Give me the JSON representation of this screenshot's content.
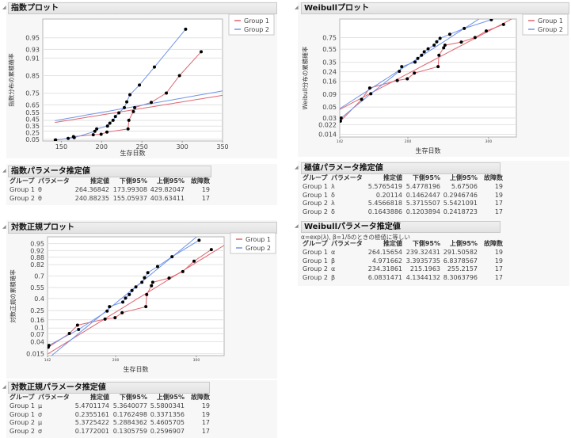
{
  "colors": {
    "group1": "#e06670",
    "group2": "#6f95e8",
    "grid": "#e2e2e2",
    "point": "#000000"
  },
  "exp_plot": {
    "title": "指数プロット",
    "ylabel": "指数分布の累積確率",
    "xlabel": "生存日数"
  },
  "weibull_plot": {
    "title": "Weibullプロット",
    "ylabel": "Weibull分布の累積確率",
    "xlabel": "生存日数"
  },
  "lognormal_plot": {
    "title": "対数正規プロット",
    "ylabel": "対数正規の累積確率",
    "xlabel": "生存日数"
  },
  "legend": [
    "Group 1",
    "Group 2"
  ],
  "exp_table": {
    "title": "指数パラメータ推定値",
    "headers": [
      "グループ",
      "パラメータ",
      "推定値",
      "下側95%",
      "上側95%",
      "故障数"
    ],
    "rows": [
      [
        "Group 1",
        "θ",
        "264.36842",
        "173.99308",
        "429.82047",
        "19"
      ],
      [
        "Group 2",
        "θ",
        "240.88235",
        "155.05937",
        "403.63411",
        "17"
      ]
    ]
  },
  "extreme_table": {
    "title": "極値パラメータ推定値",
    "headers": [
      "グループ",
      "パラメータ",
      "推定値",
      "下側95%",
      "上側95%",
      "故障数"
    ],
    "rows": [
      [
        "Group 1",
        "λ",
        "5.5765419",
        "5.4778196",
        "5.67506",
        "19"
      ],
      [
        "Group 1",
        "δ",
        "0.20114",
        "0.1462447",
        "0.2946746",
        "19"
      ],
      [
        "Group 2",
        "λ",
        "5.4566818",
        "5.3715507",
        "5.5421091",
        "17"
      ],
      [
        "Group 2",
        "δ",
        "0.1643886",
        "0.1203894",
        "0.2418723",
        "17"
      ]
    ]
  },
  "weibull_table": {
    "title": "Weibullパラメータ推定値",
    "note": "α=exp(λ), β=1/δのときの極値に等しい",
    "headers": [
      "グループ",
      "パラメータ",
      "推定値",
      "下側95%",
      "上側95%",
      "故障数"
    ],
    "rows": [
      [
        "Group 1",
        "α",
        "264.15654",
        "239.32431",
        "291.50582",
        "19"
      ],
      [
        "Group 1",
        "β",
        "4.971662",
        "3.3935735",
        "6.8378567",
        "19"
      ],
      [
        "Group 2",
        "α",
        "234.31861",
        "215.1963",
        "255.2157",
        "17"
      ],
      [
        "Group 2",
        "β",
        "6.0831471",
        "4.1344132",
        "8.3063796",
        "17"
      ]
    ]
  },
  "lognormal_table": {
    "title": "対数正規パラメータ推定値",
    "headers": [
      "グループ",
      "パラメータ",
      "推定値",
      "下側95%",
      "上側95%",
      "故障数"
    ],
    "rows": [
      [
        "Group 1",
        "μ",
        "5.4701174",
        "5.3640077",
        "5.5800341",
        "19"
      ],
      [
        "Group 1",
        "σ",
        "0.2355161",
        "0.1762498",
        "0.3371356",
        "19"
      ],
      [
        "Group 2",
        "μ",
        "5.3725422",
        "5.2884362",
        "5.4605705",
        "17"
      ],
      [
        "Group 2",
        "σ",
        "0.1772001",
        "0.1305759",
        "0.2596907",
        "17"
      ]
    ]
  },
  "chart_data": [
    {
      "type": "line",
      "scale": "exponential",
      "title": "指数プロット",
      "xlabel": "生存日数",
      "ylabel": "指数分布の累積確率",
      "xlim": [
        127,
        350
      ],
      "ylim": [
        0,
        0.971
      ],
      "xticks": [
        150,
        200,
        250,
        300,
        350
      ],
      "yticks": [
        0.05,
        0.25,
        0.35,
        0.45,
        0.55,
        0.65,
        0.75,
        0.85,
        0.91,
        0.93,
        0.95
      ],
      "grid": true,
      "legend": "top-right",
      "series": [
        {
          "name": "Group 1",
          "fit": {
            "theta": 264.36842
          }
        },
        {
          "name": "Group 2",
          "fit": {
            "theta": 240.88235
          }
        }
      ]
    },
    {
      "type": "line",
      "scale": "weibull",
      "title": "Weibullプロット",
      "xlabel": "生存日数",
      "ylabel": "Weibull分布の累積確率",
      "xlim": [
        142,
        345
      ],
      "ylim": [
        0.0123,
        0.965
      ],
      "xlog": true,
      "xticks": [
        142,
        200,
        300
      ],
      "yticks": [
        0.014,
        0.022,
        0.03,
        0.05,
        0.09,
        0.16,
        0.24,
        0.35,
        0.55,
        0.75
      ],
      "grid": true,
      "legend": "top-right",
      "series": [
        {
          "name": "Group 1",
          "fit": {
            "alpha": 264.15654,
            "beta": 4.971662
          }
        },
        {
          "name": "Group 2",
          "fit": {
            "alpha": 234.31861,
            "beta": 6.0831471
          }
        }
      ]
    },
    {
      "type": "line",
      "scale": "lognormal",
      "title": "対数正規プロット",
      "xlabel": "生存日数",
      "ylabel": "対数正規の累積確率",
      "xlim": [
        142,
        345
      ],
      "ylim": [
        0.0127,
        0.97
      ],
      "xlog": true,
      "xticks": [
        142,
        200,
        300
      ],
      "yticks": [
        0.015,
        0.04,
        0.07,
        0.1,
        0.16,
        0.25,
        0.4,
        0.55,
        0.7,
        0.82,
        0.88,
        0.92,
        0.95
      ],
      "grid": true,
      "legend": "top-right",
      "series": [
        {
          "name": "Group 1",
          "fit": {
            "mu": 5.4701174,
            "sigma": 0.2355161
          }
        },
        {
          "name": "Group 2",
          "fit": {
            "mu": 5.3725422,
            "sigma": 0.1772001
          }
        }
      ]
    }
  ],
  "observations": {
    "Group 1": [
      [
        142.5,
        0.026
      ],
      [
        158.5,
        0.071
      ],
      [
        165.1,
        0.119
      ],
      [
        189.6,
        0.166
      ],
      [
        199.4,
        0.178
      ],
      [
        206.6,
        0.227
      ],
      [
        232.8,
        0.295
      ],
      [
        233.8,
        0.452
      ],
      [
        239.4,
        0.574
      ],
      [
        241,
        0.62
      ],
      [
        261.6,
        0.674
      ],
      [
        280.3,
        0.751
      ],
      [
        296.6,
        0.85
      ],
      [
        323.5,
        0.925
      ]
    ],
    "Group 2": [
      [
        143,
        0.03
      ],
      [
        166,
        0.092
      ],
      [
        191.6,
        0.245
      ],
      [
        193.9,
        0.295
      ],
      [
        207.3,
        0.352
      ],
      [
        210.2,
        0.404
      ],
      [
        214.2,
        0.452
      ],
      [
        217.1,
        0.508
      ],
      [
        221.4,
        0.558
      ],
      [
        228.2,
        0.62
      ],
      [
        231.2,
        0.679
      ],
      [
        235.1,
        0.739
      ],
      [
        246.9,
        0.803
      ],
      [
        265.5,
        0.883
      ],
      [
        304.2,
        0.961
      ]
    ]
  }
}
